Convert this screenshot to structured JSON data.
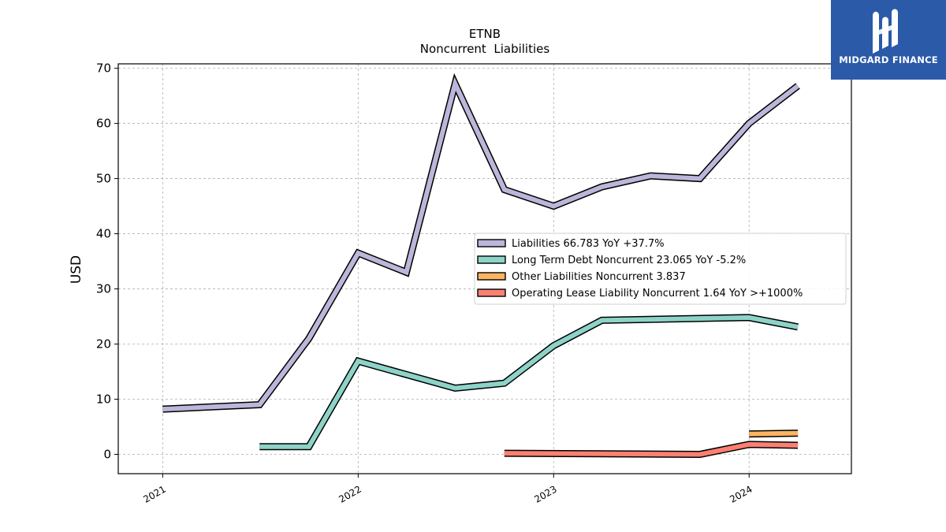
{
  "brand": {
    "name": "MIDGARD FINANCE",
    "bg_color": "#2a5aa8"
  },
  "chart_data": {
    "type": "line",
    "title": "ETNB",
    "subtitle": "Noncurrent  Liabilities",
    "xlabel": "",
    "ylabel": "USD",
    "x_ticks": [
      "2021",
      "2022",
      "2023",
      "2024"
    ],
    "ylim": [
      -3.5,
      70.8
    ],
    "y_ticks": [
      0,
      10,
      20,
      30,
      40,
      50,
      60,
      70
    ],
    "grid": true,
    "legend_position": "center-right",
    "series": [
      {
        "name": "Liabilities  66.783 YoY +37.7%",
        "color": "#bcb6da",
        "points": [
          [
            "2021-01-01",
            8.2
          ],
          [
            "2021-07-01",
            9.0
          ],
          [
            "2021-10-01",
            21.0
          ],
          [
            "2022-01-01",
            36.5
          ],
          [
            "2022-04-01",
            33.0
          ],
          [
            "2022-07-01",
            67.2
          ],
          [
            "2022-10-01",
            48.0
          ],
          [
            "2023-01-01",
            45.0
          ],
          [
            "2023-04-01",
            48.5
          ],
          [
            "2023-07-01",
            50.5
          ],
          [
            "2023-10-01",
            50.0
          ],
          [
            "2024-01-01",
            60.0
          ],
          [
            "2024-04-01",
            66.8
          ]
        ]
      },
      {
        "name": "Long Term Debt Noncurrent  23.065 YoY -5.2%",
        "color": "#8dd3c7",
        "points": [
          [
            "2021-07-01",
            1.4
          ],
          [
            "2021-10-01",
            1.4
          ],
          [
            "2022-01-01",
            16.9
          ],
          [
            "2022-07-01",
            12.0
          ],
          [
            "2022-10-01",
            12.9
          ],
          [
            "2023-01-01",
            19.7
          ],
          [
            "2023-04-01",
            24.3
          ],
          [
            "2024-01-01",
            24.8
          ],
          [
            "2024-04-01",
            23.1
          ]
        ]
      },
      {
        "name": "Other Liabilities Noncurrent  3.837",
        "color": "#fdb462",
        "points": [
          [
            "2024-01-01",
            3.7
          ],
          [
            "2024-04-01",
            3.84
          ]
        ]
      },
      {
        "name": "Operating Lease Liability Noncurrent  1.64 YoY >+1000%",
        "color": "#fb8072",
        "points": [
          [
            "2022-10-01",
            0.2
          ],
          [
            "2023-10-01",
            0.0
          ],
          [
            "2024-01-01",
            1.8
          ],
          [
            "2024-04-01",
            1.64
          ]
        ]
      }
    ]
  }
}
